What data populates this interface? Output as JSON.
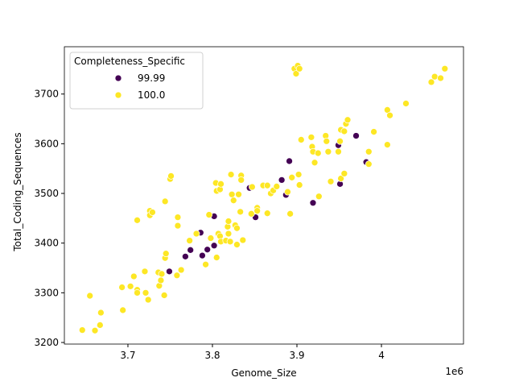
{
  "chart_data": {
    "type": "scatter",
    "x_label": "Genome_Size",
    "y_label": "Total_Coding_Sequences",
    "x_offset_text": "1e6",
    "legend_title": "Completeness_Specific",
    "legend_position": "upper left",
    "xlim": [
      3.6248,
      4.0971
    ],
    "xticks": [
      3.7,
      3.8,
      3.9,
      4.0
    ],
    "ylim": [
      3196.8,
      3795.2
    ],
    "yticks": [
      3200,
      3300,
      3400,
      3500,
      3600,
      3700
    ],
    "series": [
      {
        "name": "99.99",
        "color": "#440154",
        "x": [
          3.749,
          3.768,
          3.774,
          3.786,
          3.788,
          3.794,
          3.802,
          3.802,
          3.844,
          3.851,
          3.882,
          3.887,
          3.891,
          3.919,
          3.949,
          3.951,
          3.97,
          3.982
        ],
        "values": [
          3343,
          3373,
          3386,
          3421,
          3375,
          3387,
          3395,
          3454,
          3511,
          3452,
          3527,
          3497,
          3565,
          3481,
          3597,
          3519,
          3616,
          3563
        ]
      },
      {
        "name": "100.0",
        "color": "#fde725",
        "x": [
          3.646,
          3.661,
          3.655,
          3.668,
          3.667,
          3.693,
          3.694,
          3.703,
          3.707,
          3.711,
          3.711,
          3.72,
          3.721,
          3.724,
          3.711,
          3.726,
          3.726,
          3.729,
          3.736,
          3.737,
          3.739,
          3.74,
          3.743,
          3.744,
          3.745,
          3.744,
          3.75,
          3.751,
          3.759,
          3.759,
          3.758,
          3.763,
          3.773,
          3.781,
          3.792,
          3.796,
          3.798,
          3.804,
          3.805,
          3.809,
          3.81,
          3.807,
          3.809,
          3.805,
          3.81,
          3.816,
          3.818,
          3.819,
          3.819,
          3.821,
          3.822,
          3.823,
          3.825,
          3.827,
          3.829,
          3.829,
          3.831,
          3.833,
          3.834,
          3.834,
          3.836,
          3.846,
          3.847,
          3.853,
          3.853,
          3.86,
          3.865,
          3.865,
          3.869,
          3.872,
          3.876,
          3.889,
          3.892,
          3.894,
          3.897,
          3.899,
          3.901,
          3.903,
          3.902,
          3.903,
          3.905,
          3.917,
          3.918,
          3.919,
          3.921,
          3.925,
          3.926,
          3.934,
          3.935,
          3.937,
          3.94,
          3.949,
          3.952,
          3.951,
          3.952,
          3.956,
          3.956,
          3.958,
          3.96,
          3.985,
          3.985,
          3.991,
          4.007,
          4.007,
          4.01,
          4.029,
          4.059,
          4.063,
          4.07,
          4.075
        ],
        "values": [
          3225,
          3224,
          3294,
          3260,
          3235,
          3311,
          3265,
          3313,
          3333,
          3306,
          3300,
          3343,
          3300,
          3286,
          3446,
          3465,
          3456,
          3462,
          3341,
          3314,
          3325,
          3338,
          3295,
          3370,
          3379,
          3484,
          3529,
          3535,
          3452,
          3435,
          3335,
          3346,
          3405,
          3419,
          3357,
          3457,
          3410,
          3521,
          3505,
          3508,
          3519,
          3419,
          3414,
          3371,
          3403,
          3405,
          3433,
          3444,
          3419,
          3403,
          3538,
          3498,
          3486,
          3436,
          3430,
          3397,
          3498,
          3463,
          3536,
          3527,
          3406,
          3459,
          3513,
          3471,
          3465,
          3516,
          3516,
          3460,
          3500,
          3506,
          3514,
          3503,
          3459,
          3532,
          3751,
          3741,
          3757,
          3751,
          3538,
          3517,
          3608,
          3613,
          3594,
          3584,
          3562,
          3581,
          3494,
          3616,
          3605,
          3584,
          3524,
          3584,
          3628,
          3605,
          3530,
          3540,
          3625,
          3640,
          3648,
          3559,
          3584,
          3624,
          3598,
          3668,
          3657,
          3681,
          3724,
          3735,
          3732,
          3751
        ]
      }
    ]
  }
}
